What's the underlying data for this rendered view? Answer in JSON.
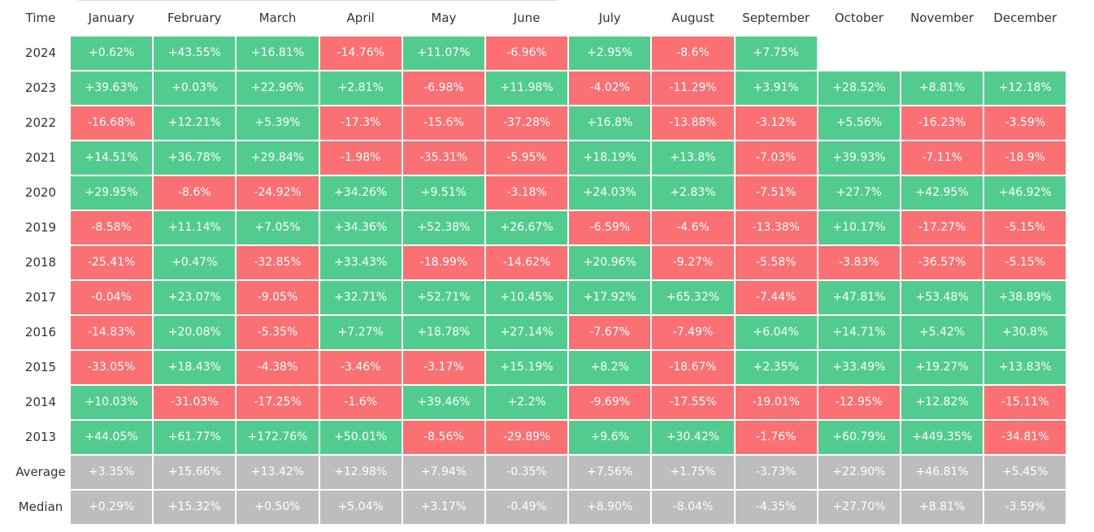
{
  "colors": {
    "positive": "#52cc8e",
    "negative": "#fa7073",
    "summary": "#bdbdbd"
  },
  "chart_data": {
    "type": "heatmap",
    "corner_label": "Time",
    "columns": [
      "January",
      "February",
      "March",
      "April",
      "May",
      "June",
      "July",
      "August",
      "September",
      "October",
      "November",
      "December"
    ],
    "rows": [
      {
        "label": "2024",
        "kind": "year",
        "values": [
          "+0.62%",
          "+43.55%",
          "+16.81%",
          "-14.76%",
          "+11.07%",
          "-6.96%",
          "+2.95%",
          "-8.6%",
          "+7.75%",
          null,
          null,
          null
        ]
      },
      {
        "label": "2023",
        "kind": "year",
        "values": [
          "+39.63%",
          "+0.03%",
          "+22.96%",
          "+2.81%",
          "-6.98%",
          "+11.98%",
          "-4.02%",
          "-11.29%",
          "+3.91%",
          "+28.52%",
          "+8.81%",
          "+12.18%"
        ]
      },
      {
        "label": "2022",
        "kind": "year",
        "values": [
          "-16.68%",
          "+12.21%",
          "+5.39%",
          "-17.3%",
          "-15.6%",
          "-37.28%",
          "+16.8%",
          "-13.88%",
          "-3.12%",
          "+5.56%",
          "-16.23%",
          "-3.59%"
        ]
      },
      {
        "label": "2021",
        "kind": "year",
        "values": [
          "+14.51%",
          "+36.78%",
          "+29.84%",
          "-1.98%",
          "-35.31%",
          "-5.95%",
          "+18.19%",
          "+13.8%",
          "-7.03%",
          "+39.93%",
          "-7.11%",
          "-18.9%"
        ]
      },
      {
        "label": "2020",
        "kind": "year",
        "values": [
          "+29.95%",
          "-8.6%",
          "-24.92%",
          "+34.26%",
          "+9.51%",
          "-3.18%",
          "+24.03%",
          "+2.83%",
          "-7.51%",
          "+27.7%",
          "+42.95%",
          "+46.92%"
        ]
      },
      {
        "label": "2019",
        "kind": "year",
        "values": [
          "-8.58%",
          "+11.14%",
          "+7.05%",
          "+34.36%",
          "+52.38%",
          "+26.67%",
          "-6.59%",
          "-4.6%",
          "-13.38%",
          "+10.17%",
          "-17.27%",
          "-5.15%"
        ]
      },
      {
        "label": "2018",
        "kind": "year",
        "values": [
          "-25.41%",
          "+0.47%",
          "-32.85%",
          "+33.43%",
          "-18.99%",
          "-14.62%",
          "+20.96%",
          "-9.27%",
          "-5.58%",
          "-3.83%",
          "-36.57%",
          "-5.15%"
        ]
      },
      {
        "label": "2017",
        "kind": "year",
        "values": [
          "-0.04%",
          "+23.07%",
          "-9.05%",
          "+32.71%",
          "+52.71%",
          "+10.45%",
          "+17.92%",
          "+65.32%",
          "-7.44%",
          "+47.81%",
          "+53.48%",
          "+38.89%"
        ]
      },
      {
        "label": "2016",
        "kind": "year",
        "values": [
          "-14.83%",
          "+20.08%",
          "-5.35%",
          "+7.27%",
          "+18.78%",
          "+27.14%",
          "-7.67%",
          "-7.49%",
          "+6.04%",
          "+14.71%",
          "+5.42%",
          "+30.8%"
        ]
      },
      {
        "label": "2015",
        "kind": "year",
        "values": [
          "-33.05%",
          "+18.43%",
          "-4.38%",
          "-3.46%",
          "-3.17%",
          "+15.19%",
          "+8.2%",
          "-18.67%",
          "+2.35%",
          "+33.49%",
          "+19.27%",
          "+13.83%"
        ]
      },
      {
        "label": "2014",
        "kind": "year",
        "values": [
          "+10.03%",
          "-31.03%",
          "-17.25%",
          "-1.6%",
          "+39.46%",
          "+2.2%",
          "-9.69%",
          "-17.55%",
          "-19.01%",
          "-12.95%",
          "+12.82%",
          "-15.11%"
        ]
      },
      {
        "label": "2013",
        "kind": "year",
        "values": [
          "+44.05%",
          "+61.77%",
          "+172.76%",
          "+50.01%",
          "-8.56%",
          "-29.89%",
          "+9.6%",
          "+30.42%",
          "-1.76%",
          "+60.79%",
          "+449.35%",
          "-34.81%"
        ]
      },
      {
        "label": "Average",
        "kind": "summary",
        "values": [
          "+3.35%",
          "+15.66%",
          "+13.42%",
          "+12.98%",
          "+7.94%",
          "-0.35%",
          "+7.56%",
          "+1.75%",
          "-3.73%",
          "+22.90%",
          "+46.81%",
          "+5.45%"
        ]
      },
      {
        "label": "Median",
        "kind": "summary",
        "values": [
          "+0.29%",
          "+15.32%",
          "+0.50%",
          "+5.04%",
          "+3.17%",
          "-0.49%",
          "+8.90%",
          "-8.04%",
          "-4.35%",
          "+27.70%",
          "+8.81%",
          "-3.59%"
        ]
      }
    ]
  }
}
